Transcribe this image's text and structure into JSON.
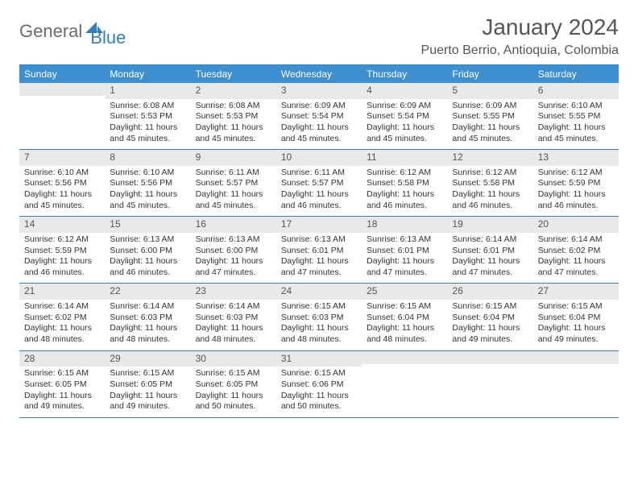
{
  "logo": {
    "text1": "General",
    "text2": "Blue",
    "mark_color": "#2f7fbf"
  },
  "title": "January 2024",
  "location": "Puerto Berrio, Antioquia, Colombia",
  "colors": {
    "header_bg": "#3d8fcf",
    "header_text": "#ffffff",
    "border": "#2f7fbf",
    "daynum_bg": "#e9e9e9",
    "text": "#333333",
    "title_text": "#555555"
  },
  "weekdays": [
    "Sunday",
    "Monday",
    "Tuesday",
    "Wednesday",
    "Thursday",
    "Friday",
    "Saturday"
  ],
  "weeks": [
    [
      {
        "day": "",
        "sunrise": "",
        "sunset": "",
        "daylight": ""
      },
      {
        "day": "1",
        "sunrise": "Sunrise: 6:08 AM",
        "sunset": "Sunset: 5:53 PM",
        "daylight": "Daylight: 11 hours and 45 minutes."
      },
      {
        "day": "2",
        "sunrise": "Sunrise: 6:08 AM",
        "sunset": "Sunset: 5:53 PM",
        "daylight": "Daylight: 11 hours and 45 minutes."
      },
      {
        "day": "3",
        "sunrise": "Sunrise: 6:09 AM",
        "sunset": "Sunset: 5:54 PM",
        "daylight": "Daylight: 11 hours and 45 minutes."
      },
      {
        "day": "4",
        "sunrise": "Sunrise: 6:09 AM",
        "sunset": "Sunset: 5:54 PM",
        "daylight": "Daylight: 11 hours and 45 minutes."
      },
      {
        "day": "5",
        "sunrise": "Sunrise: 6:09 AM",
        "sunset": "Sunset: 5:55 PM",
        "daylight": "Daylight: 11 hours and 45 minutes."
      },
      {
        "day": "6",
        "sunrise": "Sunrise: 6:10 AM",
        "sunset": "Sunset: 5:55 PM",
        "daylight": "Daylight: 11 hours and 45 minutes."
      }
    ],
    [
      {
        "day": "7",
        "sunrise": "Sunrise: 6:10 AM",
        "sunset": "Sunset: 5:56 PM",
        "daylight": "Daylight: 11 hours and 45 minutes."
      },
      {
        "day": "8",
        "sunrise": "Sunrise: 6:10 AM",
        "sunset": "Sunset: 5:56 PM",
        "daylight": "Daylight: 11 hours and 45 minutes."
      },
      {
        "day": "9",
        "sunrise": "Sunrise: 6:11 AM",
        "sunset": "Sunset: 5:57 PM",
        "daylight": "Daylight: 11 hours and 45 minutes."
      },
      {
        "day": "10",
        "sunrise": "Sunrise: 6:11 AM",
        "sunset": "Sunset: 5:57 PM",
        "daylight": "Daylight: 11 hours and 46 minutes."
      },
      {
        "day": "11",
        "sunrise": "Sunrise: 6:12 AM",
        "sunset": "Sunset: 5:58 PM",
        "daylight": "Daylight: 11 hours and 46 minutes."
      },
      {
        "day": "12",
        "sunrise": "Sunrise: 6:12 AM",
        "sunset": "Sunset: 5:58 PM",
        "daylight": "Daylight: 11 hours and 46 minutes."
      },
      {
        "day": "13",
        "sunrise": "Sunrise: 6:12 AM",
        "sunset": "Sunset: 5:59 PM",
        "daylight": "Daylight: 11 hours and 46 minutes."
      }
    ],
    [
      {
        "day": "14",
        "sunrise": "Sunrise: 6:12 AM",
        "sunset": "Sunset: 5:59 PM",
        "daylight": "Daylight: 11 hours and 46 minutes."
      },
      {
        "day": "15",
        "sunrise": "Sunrise: 6:13 AM",
        "sunset": "Sunset: 6:00 PM",
        "daylight": "Daylight: 11 hours and 46 minutes."
      },
      {
        "day": "16",
        "sunrise": "Sunrise: 6:13 AM",
        "sunset": "Sunset: 6:00 PM",
        "daylight": "Daylight: 11 hours and 47 minutes."
      },
      {
        "day": "17",
        "sunrise": "Sunrise: 6:13 AM",
        "sunset": "Sunset: 6:01 PM",
        "daylight": "Daylight: 11 hours and 47 minutes."
      },
      {
        "day": "18",
        "sunrise": "Sunrise: 6:13 AM",
        "sunset": "Sunset: 6:01 PM",
        "daylight": "Daylight: 11 hours and 47 minutes."
      },
      {
        "day": "19",
        "sunrise": "Sunrise: 6:14 AM",
        "sunset": "Sunset: 6:01 PM",
        "daylight": "Daylight: 11 hours and 47 minutes."
      },
      {
        "day": "20",
        "sunrise": "Sunrise: 6:14 AM",
        "sunset": "Sunset: 6:02 PM",
        "daylight": "Daylight: 11 hours and 47 minutes."
      }
    ],
    [
      {
        "day": "21",
        "sunrise": "Sunrise: 6:14 AM",
        "sunset": "Sunset: 6:02 PM",
        "daylight": "Daylight: 11 hours and 48 minutes."
      },
      {
        "day": "22",
        "sunrise": "Sunrise: 6:14 AM",
        "sunset": "Sunset: 6:03 PM",
        "daylight": "Daylight: 11 hours and 48 minutes."
      },
      {
        "day": "23",
        "sunrise": "Sunrise: 6:14 AM",
        "sunset": "Sunset: 6:03 PM",
        "daylight": "Daylight: 11 hours and 48 minutes."
      },
      {
        "day": "24",
        "sunrise": "Sunrise: 6:15 AM",
        "sunset": "Sunset: 6:03 PM",
        "daylight": "Daylight: 11 hours and 48 minutes."
      },
      {
        "day": "25",
        "sunrise": "Sunrise: 6:15 AM",
        "sunset": "Sunset: 6:04 PM",
        "daylight": "Daylight: 11 hours and 48 minutes."
      },
      {
        "day": "26",
        "sunrise": "Sunrise: 6:15 AM",
        "sunset": "Sunset: 6:04 PM",
        "daylight": "Daylight: 11 hours and 49 minutes."
      },
      {
        "day": "27",
        "sunrise": "Sunrise: 6:15 AM",
        "sunset": "Sunset: 6:04 PM",
        "daylight": "Daylight: 11 hours and 49 minutes."
      }
    ],
    [
      {
        "day": "28",
        "sunrise": "Sunrise: 6:15 AM",
        "sunset": "Sunset: 6:05 PM",
        "daylight": "Daylight: 11 hours and 49 minutes."
      },
      {
        "day": "29",
        "sunrise": "Sunrise: 6:15 AM",
        "sunset": "Sunset: 6:05 PM",
        "daylight": "Daylight: 11 hours and 49 minutes."
      },
      {
        "day": "30",
        "sunrise": "Sunrise: 6:15 AM",
        "sunset": "Sunset: 6:05 PM",
        "daylight": "Daylight: 11 hours and 50 minutes."
      },
      {
        "day": "31",
        "sunrise": "Sunrise: 6:15 AM",
        "sunset": "Sunset: 6:06 PM",
        "daylight": "Daylight: 11 hours and 50 minutes."
      },
      {
        "day": "",
        "sunrise": "",
        "sunset": "",
        "daylight": ""
      },
      {
        "day": "",
        "sunrise": "",
        "sunset": "",
        "daylight": ""
      },
      {
        "day": "",
        "sunrise": "",
        "sunset": "",
        "daylight": ""
      }
    ]
  ]
}
